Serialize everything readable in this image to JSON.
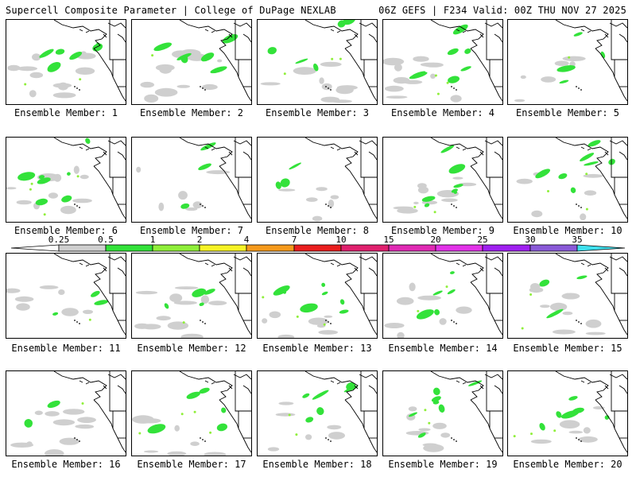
{
  "header": {
    "title_left": "Supercell Composite Parameter | College of DuPage NEXLAB",
    "title_right": "06Z GEFS | F234 Valid: 00Z THU NOV 27 2025"
  },
  "colorbar": {
    "ticks": [
      "0.25",
      "0.5",
      "1",
      "2",
      "4",
      "7",
      "10",
      "15",
      "20",
      "25",
      "30",
      "35"
    ],
    "colors": [
      "#ffffff",
      "#cfcfcf",
      "#33e23a",
      "#8fef3a",
      "#f7f325",
      "#f59a1c",
      "#ea1e1e",
      "#e0206e",
      "#e02ab4",
      "#e232e8",
      "#a020f0",
      "#8a5ad8",
      "#3fe0ee"
    ]
  },
  "members": [
    {
      "label": "Ensemble Member: 1",
      "seed": 11
    },
    {
      "label": "Ensemble Member: 2",
      "seed": 23
    },
    {
      "label": "Ensemble Member: 3",
      "seed": 37
    },
    {
      "label": "Ensemble Member: 4",
      "seed": 41
    },
    {
      "label": "Ensemble Member: 5",
      "seed": 53
    },
    {
      "label": "Ensemble Member: 6",
      "seed": 67
    },
    {
      "label": "Ensemble Member: 7",
      "seed": 71
    },
    {
      "label": "Ensemble Member: 8",
      "seed": 83
    },
    {
      "label": "Ensemble Member: 9",
      "seed": 97
    },
    {
      "label": "Ensemble Member: 10",
      "seed": 101
    },
    {
      "label": "Ensemble Member: 11",
      "seed": 113
    },
    {
      "label": "Ensemble Member: 12",
      "seed": 127
    },
    {
      "label": "Ensemble Member: 13",
      "seed": 131
    },
    {
      "label": "Ensemble Member: 14",
      "seed": 149
    },
    {
      "label": "Ensemble Member: 15",
      "seed": 151
    },
    {
      "label": "Ensemble Member: 16",
      "seed": 163
    },
    {
      "label": "Ensemble Member: 17",
      "seed": 173
    },
    {
      "label": "Ensemble Member: 18",
      "seed": 181
    },
    {
      "label": "Ensemble Member: 19",
      "seed": 191
    },
    {
      "label": "Ensemble Member: 20",
      "seed": 199
    }
  ]
}
